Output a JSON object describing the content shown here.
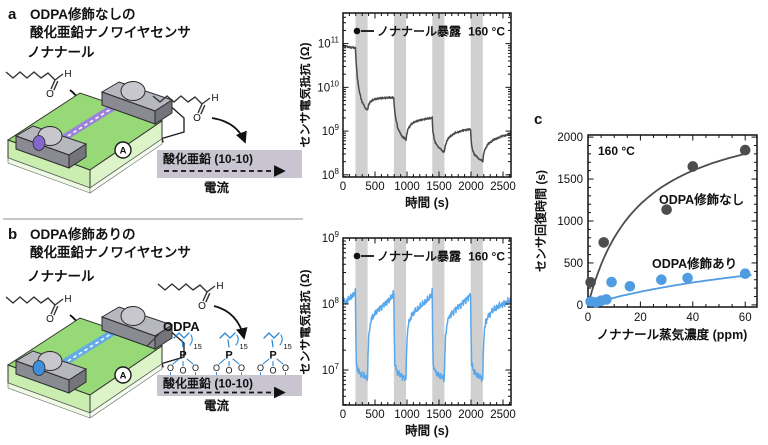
{
  "molecule": {
    "h": "H",
    "o": "O"
  },
  "device": {
    "ammeter_label": "A"
  },
  "panel_a": {
    "id_label": "a",
    "title_line1": "ODPA修飾なしの",
    "title_line2": "酸化亜鉛ナノワイヤセンサ",
    "title_color": "#111111",
    "molecule_label": "ノナナール",
    "surface_label": "酸化亜鉛 (10-10)",
    "current_label": "電流",
    "nanowire_color": "#9b84d8",
    "contact_color": "#8566cc"
  },
  "panel_b": {
    "id_label": "b",
    "title_line1": "ODPA修飾ありの",
    "title_line2": "酸化亜鉛ナノワイヤセンサ",
    "title_color": "#1a7cc4",
    "molecule_label": "ノナナール",
    "odpa_label": "ODPA",
    "p_label": "P",
    "o_atom": "O",
    "repeat_label": "15",
    "surface_label": "酸化亜鉛 (10-10)",
    "current_label": "電流",
    "nanowire_color": "#64a9e8",
    "contact_color": "#3f8fdd"
  },
  "panel_c": {
    "id_label": "c"
  },
  "chart_data": [
    {
      "id": "chart-top",
      "type": "line",
      "log_y": true,
      "legend": "ノナナール暴露",
      "annotation": "160 °C",
      "xlabel": "時間 (s)",
      "ylabel": "センサ電気抵抗 (Ω)",
      "xlim": [
        0,
        2625
      ],
      "x_major": 500,
      "x_minor": 100,
      "ylog_range": [
        7.95,
        11.7
      ],
      "ytick_exponents": [
        8,
        9,
        10,
        11
      ],
      "exposure_bands": [
        [
          195,
          385
        ],
        [
          795,
          985
        ],
        [
          1395,
          1585
        ],
        [
          1995,
          2185
        ]
      ],
      "line_color": "#4a4a4a",
      "band_color": "#d0d0d0",
      "noise_amp": 0.012,
      "keypoints": [
        [
          0,
          90000000000.0
        ],
        [
          100,
          83000000000.0
        ],
        [
          193,
          80000000000.0
        ],
        [
          205,
          40000000000.0
        ],
        [
          225,
          16000000000.0
        ],
        [
          255,
          8000000000.0
        ],
        [
          295,
          4800000000.0
        ],
        [
          340,
          3500000000.0
        ],
        [
          385,
          3000000000.0
        ],
        [
          395,
          3800000000.0
        ],
        [
          420,
          4600000000.0
        ],
        [
          470,
          5200000000.0
        ],
        [
          560,
          5600000000.0
        ],
        [
          700,
          5800000000.0
        ],
        [
          793,
          5800000000.0
        ],
        [
          805,
          3200000000.0
        ],
        [
          825,
          1900000000.0
        ],
        [
          855,
          1200000000.0
        ],
        [
          900,
          850000000.0
        ],
        [
          945,
          700000000.0
        ],
        [
          985,
          640000000.0
        ],
        [
          995,
          850000000.0
        ],
        [
          1020,
          1150000000.0
        ],
        [
          1065,
          1450000000.0
        ],
        [
          1150,
          1700000000.0
        ],
        [
          1290,
          1900000000.0
        ],
        [
          1393,
          2000000000.0
        ],
        [
          1405,
          1000000000.0
        ],
        [
          1425,
          650000000.0
        ],
        [
          1455,
          500000000.0
        ],
        [
          1500,
          420000000.0
        ],
        [
          1545,
          360000000.0
        ],
        [
          1585,
          330000000.0
        ],
        [
          1595,
          440000000.0
        ],
        [
          1620,
          580000000.0
        ],
        [
          1665,
          740000000.0
        ],
        [
          1750,
          900000000.0
        ],
        [
          1890,
          1050000000.0
        ],
        [
          1993,
          1100000000.0
        ],
        [
          2005,
          550000000.0
        ],
        [
          2025,
          360000000.0
        ],
        [
          2055,
          290000000.0
        ],
        [
          2100,
          250000000.0
        ],
        [
          2145,
          220000000.0
        ],
        [
          2185,
          210000000.0
        ],
        [
          2195,
          290000000.0
        ],
        [
          2220,
          390000000.0
        ],
        [
          2265,
          500000000.0
        ],
        [
          2350,
          630000000.0
        ],
        [
          2480,
          760000000.0
        ],
        [
          2625,
          860000000.0
        ]
      ]
    },
    {
      "id": "chart-bottom",
      "type": "line",
      "log_y": true,
      "legend": "ノナナール暴露",
      "annotation": "160 °C",
      "xlabel": "時間 (s)",
      "ylabel": "センサ電気抵抗 (Ω)",
      "xlim": [
        0,
        2625
      ],
      "x_major": 500,
      "x_minor": 100,
      "ylog_range": [
        6.47,
        9.0
      ],
      "ytick_exponents": [
        7,
        8,
        9
      ],
      "exposure_bands": [
        [
          195,
          385
        ],
        [
          795,
          985
        ],
        [
          1395,
          1585
        ],
        [
          1995,
          2185
        ]
      ],
      "line_color": "#5aa8ec",
      "band_color": "#d0d0d0",
      "noise_amp": 0.028,
      "keypoints": [
        [
          0,
          115000000.0
        ],
        [
          40,
          105000000.0
        ],
        [
          90,
          120000000.0
        ],
        [
          140,
          130000000.0
        ],
        [
          175,
          145000000.0
        ],
        [
          193,
          160000000.0
        ],
        [
          200,
          40000000.0
        ],
        [
          210,
          12000000.0
        ],
        [
          250,
          9200000.0
        ],
        [
          310,
          8200000.0
        ],
        [
          383,
          7600000.0
        ],
        [
          391,
          16000000.0
        ],
        [
          402,
          32000000.0
        ],
        [
          430,
          54000000.0
        ],
        [
          470,
          66000000.0
        ],
        [
          540,
          80000000.0
        ],
        [
          630,
          96000000.0
        ],
        [
          720,
          115000000.0
        ],
        [
          780,
          135000000.0
        ],
        [
          793,
          155000000.0
        ],
        [
          800,
          40000000.0
        ],
        [
          810,
          12000000.0
        ],
        [
          850,
          9200000.0
        ],
        [
          910,
          8200000.0
        ],
        [
          983,
          7400000.0
        ],
        [
          991,
          16000000.0
        ],
        [
          1002,
          32000000.0
        ],
        [
          1030,
          54000000.0
        ],
        [
          1070,
          66000000.0
        ],
        [
          1140,
          80000000.0
        ],
        [
          1230,
          96000000.0
        ],
        [
          1320,
          115000000.0
        ],
        [
          1380,
          135000000.0
        ],
        [
          1393,
          150000000.0
        ],
        [
          1400,
          40000000.0
        ],
        [
          1410,
          12000000.0
        ],
        [
          1450,
          9200000.0
        ],
        [
          1510,
          8200000.0
        ],
        [
          1583,
          7400000.0
        ],
        [
          1591,
          16000000.0
        ],
        [
          1602,
          32000000.0
        ],
        [
          1630,
          54000000.0
        ],
        [
          1670,
          66000000.0
        ],
        [
          1740,
          80000000.0
        ],
        [
          1830,
          96000000.0
        ],
        [
          1920,
          115000000.0
        ],
        [
          1980,
          135000000.0
        ],
        [
          1993,
          150000000.0
        ],
        [
          2000,
          40000000.0
        ],
        [
          2010,
          12000000.0
        ],
        [
          2050,
          9200000.0
        ],
        [
          2110,
          8200000.0
        ],
        [
          2183,
          7400000.0
        ],
        [
          2191,
          16000000.0
        ],
        [
          2202,
          32000000.0
        ],
        [
          2230,
          54000000.0
        ],
        [
          2270,
          66000000.0
        ],
        [
          2340,
          80000000.0
        ],
        [
          2430,
          92000000.0
        ],
        [
          2540,
          105000000.0
        ],
        [
          2625,
          115000000.0
        ]
      ]
    },
    {
      "id": "chart-c",
      "type": "scatter",
      "annotation": "160 °C",
      "xlabel": "ノナナール蒸気濃度 (ppm)",
      "ylabel": "センサ回復時間 (s)",
      "xlim": [
        0,
        64.5
      ],
      "ylim": [
        -25,
        2025
      ],
      "x_major": 20,
      "x_minor": 5,
      "y_major": 500,
      "y_minor": 100,
      "series": [
        {
          "name": "ODPA修飾なし",
          "color": "#4d4d4d",
          "marker_r": 5.3,
          "points": [
            [
              1,
              270
            ],
            [
              6,
              745
            ],
            [
              30,
              1135
            ],
            [
              40,
              1650
            ],
            [
              60,
              1845
            ]
          ],
          "fit": {
            "amp": 2400,
            "k": 20,
            "x_start": 0.6,
            "x_end": 62
          },
          "label_xy": [
            129,
            96
          ]
        },
        {
          "name": "ODPA修飾あり",
          "color": "#4f9ce2",
          "marker_r": 5.3,
          "points": [
            [
              1,
              40
            ],
            [
              3,
              30
            ],
            [
              5,
              50
            ],
            [
              7,
              65
            ],
            [
              9,
              272
            ],
            [
              16,
              222
            ],
            [
              28,
              300
            ],
            [
              38,
              320
            ],
            [
              60,
              372
            ]
          ],
          "fit": {
            "amp": 900,
            "k": 95,
            "x_start": 4,
            "x_end": 63
          },
          "label_xy": [
            122,
            160
          ]
        }
      ]
    }
  ]
}
